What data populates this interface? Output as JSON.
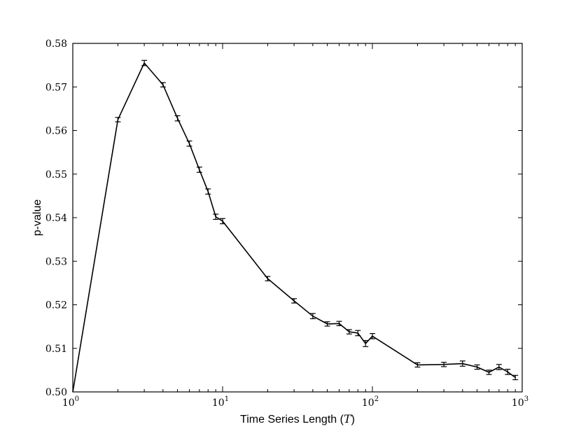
{
  "chart_data": {
    "type": "line",
    "xscale": "log",
    "xlabel_prefix": "Time Series Length (",
    "xlabel_var": "T",
    "xlabel_suffix": ")",
    "ylabel": "p-value",
    "xlim": [
      1,
      1000
    ],
    "ylim": [
      0.5,
      0.58
    ],
    "grid": false,
    "x_ticks": [
      {
        "value": 1,
        "base": "10",
        "exp": "0"
      },
      {
        "value": 10,
        "base": "10",
        "exp": "1"
      },
      {
        "value": 100,
        "base": "10",
        "exp": "2"
      },
      {
        "value": 1000,
        "base": "10",
        "exp": "3"
      }
    ],
    "y_ticks": [
      {
        "value": 0.5,
        "label": "0.50"
      },
      {
        "value": 0.51,
        "label": "0.51"
      },
      {
        "value": 0.52,
        "label": "0.52"
      },
      {
        "value": 0.53,
        "label": "0.53"
      },
      {
        "value": 0.54,
        "label": "0.54"
      },
      {
        "value": 0.55,
        "label": "0.55"
      },
      {
        "value": 0.56,
        "label": "0.56"
      },
      {
        "value": 0.57,
        "label": "0.57"
      },
      {
        "value": 0.58,
        "label": "0.58"
      }
    ],
    "line_color": "#000000",
    "series": [
      {
        "x": [
          1,
          2,
          3,
          4,
          5,
          6,
          7,
          8,
          9,
          10,
          20,
          30,
          40,
          50,
          60,
          70,
          80,
          90,
          100,
          200,
          300,
          400,
          500,
          600,
          700,
          800,
          900
        ],
        "y": [
          0.5,
          0.5625,
          0.5755,
          0.5705,
          0.5628,
          0.557,
          0.551,
          0.546,
          0.5402,
          0.5392,
          0.526,
          0.5209,
          0.5174,
          0.5156,
          0.5157,
          0.5138,
          0.5135,
          0.5111,
          0.5128,
          0.5062,
          0.5063,
          0.5065,
          0.5057,
          0.5045,
          0.5057,
          0.5046,
          0.5033
        ],
        "err": [
          0,
          0.0005,
          0.0006,
          0.0005,
          0.0006,
          0.0006,
          0.0006,
          0.0006,
          0.0006,
          0.0006,
          0.0005,
          0.0005,
          0.0006,
          0.0005,
          0.0005,
          0.0005,
          0.0006,
          0.0007,
          0.0006,
          0.0005,
          0.0005,
          0.0006,
          0.0005,
          0.0005,
          0.0006,
          0.0006,
          0.0005
        ]
      }
    ]
  }
}
